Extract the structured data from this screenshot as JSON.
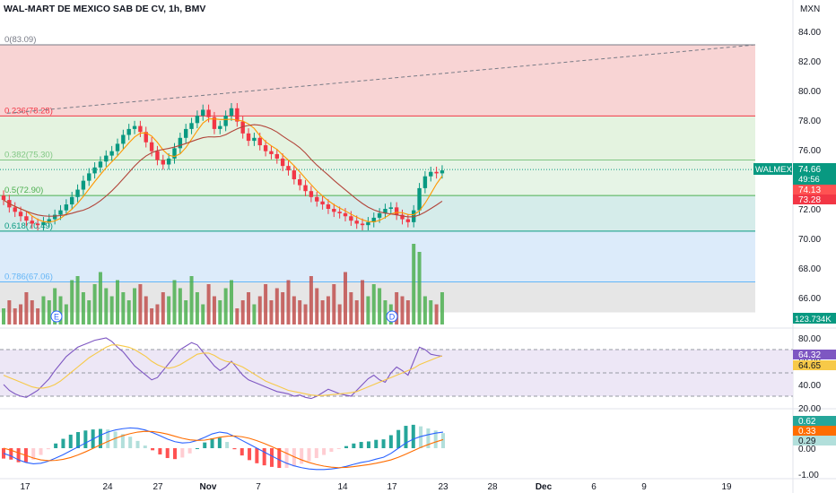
{
  "header": {
    "symbol_title": "WAL-MART DE MEXICO SAB DE CV, 1h, BMV",
    "currency": "MXN"
  },
  "price_axis": {
    "ticks": [
      "84.00",
      "82.00",
      "80.00",
      "78.00",
      "76.00",
      "74.00",
      "72.00",
      "70.00",
      "68.00",
      "66.00"
    ],
    "tick_values": [
      84,
      82,
      80,
      78,
      76,
      74,
      72,
      70,
      68,
      66
    ]
  },
  "fib_levels": [
    {
      "label": "0(83.09)",
      "price": 83.09,
      "fill": "",
      "line": "#787b86",
      "text_color": "#787b86"
    },
    {
      "label": "0.236(78.28)",
      "price": 78.28,
      "fill": "#f8d4d4",
      "line": "#f23645",
      "text_color": "#f23645"
    },
    {
      "label": "0.382(75.30)",
      "price": 75.3,
      "fill": "#e4f3e0",
      "line": "#81c784",
      "text_color": "#81c784"
    },
    {
      "label": "0.5(72.90)",
      "price": 72.9,
      "fill": "#e6f4e6",
      "line": "#4caf50",
      "text_color": "#4caf50"
    },
    {
      "label": "0.618(70.49)",
      "price": 70.49,
      "fill": "#d5ecea",
      "line": "#089981",
      "text_color": "#089981"
    },
    {
      "label": "0.786(67.06)",
      "price": 67.06,
      "fill": "#dcebfa",
      "line": "#64b5f6",
      "text_color": "#64b5f6"
    },
    {
      "label": "",
      "price": 65.0,
      "fill": "#e6e6e6",
      "line": "",
      "text_color": ""
    }
  ],
  "price_badges": {
    "ticker": "WALMEX",
    "last_price": "74.66",
    "countdown": "49:56",
    "ma_fast": "74.13",
    "ma_slow": "73.28",
    "volume": "123.734K",
    "last_color": "#089981",
    "ma_fast_color": "#ff5252",
    "ma_slow_color": "#f23645"
  },
  "event_markers": [
    {
      "letter": "E",
      "x_label": "earnings"
    },
    {
      "letter": "D",
      "x_label": "dividend"
    }
  ],
  "rsi_panel": {
    "ticks": [
      "80.00",
      "60.00",
      "40.00",
      "20.00"
    ],
    "tick_values": [
      80,
      60,
      40,
      20
    ],
    "upper_band": 70,
    "lower_band": 30,
    "middle": 50,
    "value": "64.32",
    "ma_value": "64.65",
    "value_color": "#7e57c2",
    "ma_color": "#f7c948"
  },
  "macd_panel": {
    "ticks": [
      "0.00",
      "-1.00"
    ],
    "tick_values": [
      0,
      -1
    ],
    "macd_value": "0.62",
    "signal_value": "0.33",
    "hist_value": "0.29",
    "macd_color": "#2962ff",
    "signal_color": "#ff6d00",
    "hist_color": "#26a69a"
  },
  "time_axis": {
    "labels": [
      "17",
      "24",
      "27",
      "Nov",
      "7",
      "14",
      "17",
      "23",
      "28",
      "Dec",
      "6",
      "9",
      "19"
    ],
    "bold": [
      "Nov",
      "Dec"
    ]
  },
  "chart_data": {
    "type": "candlestick",
    "title": "WAL-MART DE MEXICO SAB DE CV, 1h, BMV",
    "ylabel": "MXN",
    "ylim": [
      64.4,
      85.0
    ],
    "close": [
      72.6,
      72.1,
      71.8,
      71.5,
      71.2,
      71.0,
      70.9,
      71.1,
      71.3,
      71.6,
      71.9,
      72.3,
      72.8,
      73.3,
      73.9,
      74.4,
      74.8,
      75.2,
      75.6,
      75.9,
      76.4,
      77.0,
      77.4,
      77.6,
      77.2,
      76.5,
      75.9,
      75.3,
      75.0,
      75.4,
      76.1,
      76.8,
      77.4,
      77.8,
      78.3,
      78.7,
      78.2,
      77.4,
      77.6,
      78.3,
      78.8,
      77.9,
      77.1,
      76.6,
      76.8,
      76.3,
      75.9,
      75.7,
      75.4,
      74.9,
      74.6,
      74.0,
      73.6,
      73.2,
      72.8,
      72.5,
      72.3,
      72.0,
      71.8,
      71.7,
      71.5,
      71.2,
      71.0,
      70.9,
      71.1,
      71.4,
      71.7,
      72.0,
      72.1,
      71.6,
      71.3,
      71.1,
      71.9,
      73.4,
      74.2,
      74.5,
      74.4,
      74.6
    ],
    "volume_rel": [
      0.2,
      0.3,
      0.2,
      0.25,
      0.4,
      0.3,
      0.2,
      0.35,
      0.3,
      0.45,
      0.35,
      0.25,
      0.55,
      0.6,
      0.4,
      0.3,
      0.5,
      0.65,
      0.45,
      0.35,
      0.55,
      0.4,
      0.3,
      0.45,
      0.5,
      0.35,
      0.2,
      0.25,
      0.4,
      0.35,
      0.55,
      0.45,
      0.3,
      0.6,
      0.4,
      0.25,
      0.5,
      0.35,
      0.3,
      0.45,
      0.55,
      0.2,
      0.3,
      0.4,
      0.25,
      0.35,
      0.5,
      0.3,
      0.45,
      0.4,
      0.55,
      0.35,
      0.3,
      0.25,
      0.6,
      0.45,
      0.3,
      0.35,
      0.5,
      0.25,
      0.65,
      0.4,
      0.3,
      0.55,
      0.35,
      0.5,
      0.45,
      0.3,
      0.25,
      0.4,
      0.35,
      0.3,
      1.0,
      0.9,
      0.35,
      0.3,
      0.25,
      0.4
    ],
    "rsi": [
      40,
      35,
      32,
      30,
      29,
      32,
      35,
      40,
      45,
      52,
      58,
      64,
      68,
      72,
      74,
      76,
      78,
      79,
      80,
      77,
      72,
      68,
      62,
      56,
      52,
      48,
      44,
      46,
      52,
      58,
      64,
      70,
      73,
      76,
      74,
      68,
      62,
      56,
      52,
      55,
      60,
      54,
      48,
      44,
      42,
      40,
      38,
      36,
      34,
      33,
      32,
      30,
      31,
      29,
      28,
      30,
      33,
      36,
      34,
      32,
      31,
      30,
      35,
      40,
      45,
      48,
      44,
      42,
      50,
      55,
      52,
      48,
      60,
      72,
      70,
      66,
      65,
      64.3
    ],
    "rsi_ma": [
      48,
      46,
      44,
      42,
      40,
      38,
      37,
      37,
      38,
      40,
      43,
      47,
      51,
      55,
      59,
      63,
      66,
      69,
      72,
      74,
      74,
      73,
      72,
      70,
      67,
      64,
      60,
      57,
      55,
      54,
      55,
      57,
      60,
      63,
      66,
      67,
      67,
      65,
      62,
      60,
      59,
      57,
      55,
      52,
      49,
      46,
      43,
      41,
      39,
      37,
      35,
      34,
      33,
      32,
      31,
      30.5,
      30.5,
      31,
      31.5,
      32,
      32.5,
      33,
      34,
      36,
      38,
      40,
      42,
      44,
      46,
      48,
      50,
      52,
      54,
      57,
      59,
      61,
      63,
      64.6
    ],
    "macd": [
      -0.2,
      -0.3,
      -0.45,
      -0.55,
      -0.6,
      -0.58,
      -0.5,
      -0.38,
      -0.25,
      -0.1,
      0.05,
      0.2,
      0.35,
      0.5,
      0.62,
      0.7,
      0.75,
      0.78,
      0.76,
      0.7,
      0.6,
      0.48,
      0.35,
      0.25,
      0.2,
      0.22,
      0.3,
      0.42,
      0.55,
      0.62,
      0.58,
      0.45,
      0.3,
      0.15,
      0.0,
      -0.15,
      -0.3,
      -0.45,
      -0.58,
      -0.68,
      -0.75,
      -0.8,
      -0.82,
      -0.82,
      -0.8,
      -0.76,
      -0.7,
      -0.62,
      -0.55,
      -0.5,
      -0.42,
      -0.35,
      -0.2,
      0.0,
      0.2,
      0.35,
      0.45,
      0.52,
      0.58,
      0.62
    ],
    "macd_signal": [
      0.0,
      -0.08,
      -0.18,
      -0.28,
      -0.38,
      -0.45,
      -0.48,
      -0.47,
      -0.43,
      -0.36,
      -0.26,
      -0.14,
      -0.01,
      0.13,
      0.26,
      0.38,
      0.48,
      0.56,
      0.62,
      0.65,
      0.64,
      0.6,
      0.54,
      0.46,
      0.38,
      0.32,
      0.3,
      0.31,
      0.36,
      0.42,
      0.46,
      0.47,
      0.44,
      0.38,
      0.29,
      0.18,
      0.06,
      -0.07,
      -0.2,
      -0.33,
      -0.45,
      -0.55,
      -0.63,
      -0.69,
      -0.73,
      -0.75,
      -0.74,
      -0.71,
      -0.67,
      -0.63,
      -0.58,
      -0.52,
      -0.45,
      -0.35,
      -0.23,
      -0.1,
      0.03,
      0.14,
      0.24,
      0.33
    ]
  }
}
